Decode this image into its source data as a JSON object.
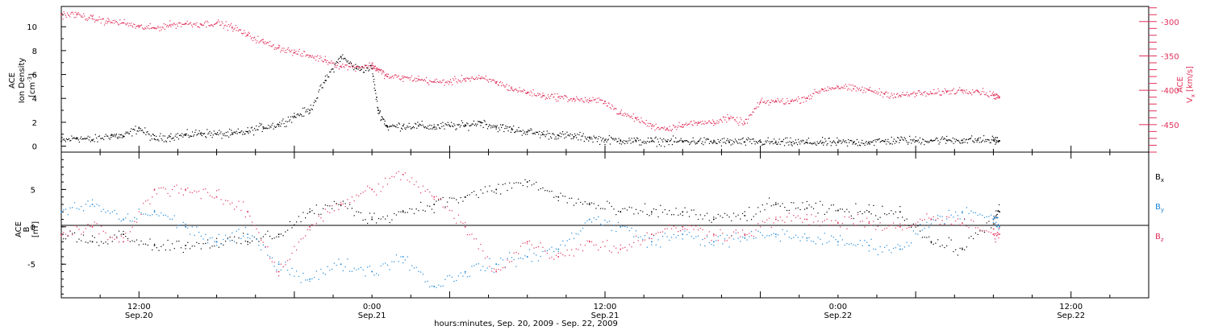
{
  "chart_data": [
    {
      "type": "scatter",
      "panel": "top",
      "ylabel_left": [
        "ACE",
        "Ion Density",
        "[cm",
        "-3",
        "]"
      ],
      "ylabel_right": [
        "ACE",
        "V",
        "x",
        "[km/s]"
      ],
      "ylim_left": [
        -0.5,
        11.7
      ],
      "ylim_right": [
        -490,
        -278
      ],
      "yticks_left": [
        0,
        2,
        4,
        6,
        8,
        10
      ],
      "yticks_right": [
        -300,
        -350,
        -400,
        -450
      ],
      "series": [
        {
          "axis": "left",
          "color": "#000000",
          "x": [
            0,
            0.05,
            0.1,
            0.16,
            0.2,
            0.25,
            0.3,
            0.35,
            0.4,
            0.45,
            0.5,
            0.55,
            0.6,
            0.65,
            0.7,
            0.75,
            0.8,
            0.85,
            0.9,
            0.95,
            1.0,
            1.02,
            1.05,
            1.1,
            1.15,
            1.2,
            1.25,
            1.3,
            1.35,
            1.4,
            1.45,
            1.5,
            1.55,
            1.6,
            1.65,
            1.7,
            1.75,
            1.8,
            1.85,
            1.9,
            1.95,
            2.0,
            2.05,
            2.1,
            2.15,
            2.2,
            2.25,
            2.3,
            2.35,
            2.4,
            2.45,
            2.5,
            2.55,
            2.6,
            2.65,
            2.7,
            2.75,
            2.8,
            2.85,
            2.9,
            2.95,
            3.0,
            3.02
          ],
          "y": [
            0.4,
            0.7,
            0.5,
            0.9,
            0.8,
            1.5,
            0.6,
            0.8,
            0.9,
            1.1,
            1.0,
            1.0,
            1.2,
            1.6,
            1.8,
            2.5,
            3.0,
            5.5,
            7.5,
            6.5,
            6.5,
            3.0,
            1.6,
            1.7,
            1.7,
            1.6,
            1.7,
            1.7,
            2.0,
            1.6,
            1.4,
            1.2,
            1.0,
            0.9,
            0.8,
            0.7,
            0.5,
            0.5,
            0.4,
            0.4,
            0.4,
            0.4,
            0.4,
            0.35,
            0.35,
            0.35,
            0.35,
            0.3,
            0.3,
            0.3,
            0.3,
            0.3,
            0.3,
            0.35,
            0.4,
            0.5,
            0.45,
            0.5,
            0.5,
            0.5,
            0.5,
            0.5,
            0.45
          ]
        },
        {
          "axis": "right",
          "color": "#e0305a",
          "x": [
            0,
            0.05,
            0.1,
            0.15,
            0.2,
            0.25,
            0.3,
            0.35,
            0.4,
            0.45,
            0.5,
            0.55,
            0.6,
            0.65,
            0.7,
            0.75,
            0.8,
            0.85,
            0.9,
            0.95,
            1.0,
            1.02,
            1.05,
            1.1,
            1.15,
            1.2,
            1.25,
            1.3,
            1.35,
            1.4,
            1.45,
            1.5,
            1.55,
            1.6,
            1.65,
            1.7,
            1.75,
            1.8,
            1.85,
            1.9,
            1.95,
            2.0,
            2.05,
            2.1,
            2.15,
            2.2,
            2.25,
            2.3,
            2.35,
            2.4,
            2.45,
            2.5,
            2.55,
            2.6,
            2.65,
            2.7,
            2.75,
            2.8,
            2.85,
            2.9,
            2.95,
            3.0,
            3.02
          ],
          "y": [
            -290,
            -290,
            -296,
            -300,
            -302,
            -308,
            -310,
            -305,
            -303,
            -304,
            -302,
            -308,
            -320,
            -330,
            -338,
            -345,
            -350,
            -356,
            -365,
            -366,
            -364,
            -370,
            -380,
            -382,
            -384,
            -388,
            -388,
            -383,
            -383,
            -388,
            -398,
            -403,
            -408,
            -410,
            -413,
            -415,
            -416,
            -434,
            -441,
            -452,
            -456,
            -450,
            -448,
            -446,
            -441,
            -448,
            -418,
            -416,
            -416,
            -411,
            -399,
            -395,
            -398,
            -400,
            -405,
            -408,
            -405,
            -405,
            -402,
            -400,
            -401,
            -407,
            -410
          ]
        }
      ]
    },
    {
      "type": "scatter",
      "panel": "bottom",
      "ylabel": [
        "ACE",
        "B",
        "[nT]"
      ],
      "ylim": [
        -9.5,
        10
      ],
      "yticks": [
        5,
        0,
        -5
      ],
      "legend_placement": "right",
      "series": [
        {
          "name": "B",
          "sub": "x",
          "color": "#000000",
          "x": [
            0,
            0.1,
            0.2,
            0.3,
            0.4,
            0.5,
            0.6,
            0.7,
            0.8,
            0.9,
            1.0,
            1.1,
            1.2,
            1.3,
            1.4,
            1.5,
            1.6,
            1.7,
            1.8,
            1.9,
            2.0,
            2.1,
            2.2,
            2.3,
            2.4,
            2.5,
            2.6,
            2.7,
            2.8,
            2.9,
            3.0,
            3.02
          ],
          "y": [
            -1,
            -2,
            -1,
            -2.5,
            -2.5,
            -2,
            -2,
            -1,
            2,
            3,
            1,
            2,
            3,
            4,
            5,
            6,
            4,
            3,
            2,
            2,
            2,
            1,
            1.5,
            3,
            2.5,
            2.2,
            2,
            2,
            -2,
            -3,
            1,
            2
          ]
        },
        {
          "name": "B",
          "sub": "y",
          "color": "#1a86d8",
          "x": [
            0,
            0.1,
            0.2,
            0.3,
            0.4,
            0.5,
            0.6,
            0.7,
            0.8,
            0.9,
            1.0,
            1.1,
            1.2,
            1.3,
            1.4,
            1.5,
            1.6,
            1.7,
            1.8,
            1.9,
            2.0,
            2.1,
            2.2,
            2.3,
            2.4,
            2.5,
            2.6,
            2.7,
            2.8,
            2.9,
            3.0,
            3.02
          ],
          "y": [
            2,
            3,
            1,
            2,
            0,
            -2,
            -1,
            -5,
            -7,
            -5,
            -6,
            -4,
            -8,
            -6,
            -5,
            -4,
            -3,
            1,
            0,
            -2,
            -1,
            -2,
            -1.5,
            -1,
            -1.5,
            -2,
            -2.5,
            -3,
            1,
            2,
            1,
            0
          ]
        },
        {
          "name": "B",
          "sub": "z",
          "color": "#e0305a",
          "x": [
            0,
            0.1,
            0.2,
            0.3,
            0.4,
            0.5,
            0.6,
            0.7,
            0.8,
            0.9,
            1.0,
            1.1,
            1.2,
            1.3,
            1.4,
            1.5,
            1.6,
            1.7,
            1.8,
            1.9,
            2.0,
            2.1,
            2.2,
            2.3,
            2.4,
            2.5,
            2.6,
            2.7,
            2.8,
            2.9,
            3.0,
            3.02
          ],
          "y": [
            -1,
            0,
            -2,
            5,
            5,
            4,
            2,
            -6,
            0,
            3,
            5,
            7,
            4,
            0,
            -6,
            -2,
            -4,
            -2,
            -3,
            -1,
            0,
            -1,
            -1,
            1,
            1,
            0.5,
            0.5,
            0,
            1,
            0.5,
            -1,
            -1
          ]
        }
      ]
    }
  ],
  "x_axis": {
    "labels": [
      {
        "time": "12:00",
        "date": "Sep.20",
        "t": 0.25
      },
      {
        "time": "0:00",
        "date": "Sep.21",
        "t": 1.0
      },
      {
        "time": "12:00",
        "date": "Sep.21",
        "t": 1.75
      },
      {
        "time": "0:00",
        "date": "Sep.22",
        "t": 2.5
      },
      {
        "time": "12:00",
        "date": "Sep.22",
        "t": 3.25
      }
    ],
    "xlabel": "hours:minutes, Sep. 20, 2009 - Sep. 22, 2009"
  },
  "colors": {
    "bx": "#000000",
    "by": "#1a86d8",
    "bz": "#e0305a",
    "vx": "#e0305a",
    "density": "#000000"
  }
}
